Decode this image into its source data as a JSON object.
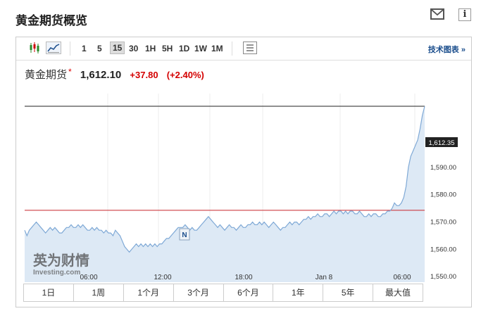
{
  "page": {
    "title": "黄金期货概览"
  },
  "toolbar": {
    "timeframes": [
      "1",
      "5",
      "15",
      "30",
      "1H",
      "5H",
      "1D",
      "1W",
      "1M"
    ],
    "active_timeframe": "15",
    "advanced_label": "技术图表 »"
  },
  "quote": {
    "name": "黄金期货",
    "star": "*",
    "price": "1,612.10",
    "change": "+37.80",
    "change_pct": "(+2.40%)"
  },
  "chart_data": {
    "type": "area",
    "x_tick_labels": [
      "06:00",
      "12:00",
      "18:00",
      "Jan 8",
      "06:00"
    ],
    "y_tick_labels": [
      "1,550.00",
      "1,560.00",
      "1,570.00",
      "1,580.00",
      "1,590.00",
      "1,600.00"
    ],
    "ylim": [
      1548,
      1617
    ],
    "last_price_label": "1,612.35",
    "last_price": 1612.35,
    "previous_close": 1574.3,
    "marker_label": "N",
    "watermark": {
      "brand_cn": "英为财情",
      "brand_en": "Investing.com"
    },
    "grid": true,
    "series": [
      {
        "values": [
          1567,
          1565,
          1567,
          1568,
          1569,
          1570,
          1569,
          1568,
          1567,
          1566,
          1567,
          1568,
          1567,
          1568,
          1567,
          1566,
          1566,
          1567,
          1568,
          1568,
          1569,
          1568,
          1568,
          1569,
          1568,
          1569,
          1568,
          1567,
          1567,
          1568,
          1567,
          1568,
          1567,
          1567,
          1566,
          1567,
          1566,
          1566,
          1565,
          1567,
          1566,
          1565,
          1563,
          1561,
          1560,
          1559,
          1560,
          1561,
          1562,
          1561,
          1562,
          1561,
          1562,
          1561,
          1562,
          1561,
          1562,
          1561,
          1562,
          1562,
          1563,
          1564,
          1564,
          1565,
          1566,
          1567,
          1568,
          1568,
          1568,
          1569,
          1568,
          1567,
          1568,
          1567,
          1567,
          1568,
          1569,
          1570,
          1571,
          1572,
          1571,
          1570,
          1569,
          1568,
          1569,
          1568,
          1567,
          1568,
          1569,
          1568,
          1568,
          1567,
          1568,
          1569,
          1568,
          1568,
          1569,
          1569,
          1570,
          1569,
          1569,
          1570,
          1569,
          1570,
          1569,
          1568,
          1569,
          1570,
          1569,
          1568,
          1567,
          1568,
          1568,
          1569,
          1570,
          1569,
          1570,
          1570,
          1569,
          1570,
          1571,
          1571,
          1572,
          1571,
          1572,
          1572,
          1573,
          1572,
          1572,
          1573,
          1573,
          1572,
          1573,
          1574,
          1573,
          1574,
          1574,
          1573,
          1574,
          1573,
          1574,
          1574,
          1573,
          1573,
          1574,
          1573,
          1572,
          1572,
          1573,
          1572,
          1573,
          1573,
          1572,
          1572,
          1573,
          1573,
          1574,
          1574,
          1575,
          1577,
          1576,
          1576,
          1577,
          1579,
          1583,
          1590,
          1594,
          1596,
          1598,
          1600,
          1604,
          1609,
          1612.35
        ]
      }
    ]
  }
}
